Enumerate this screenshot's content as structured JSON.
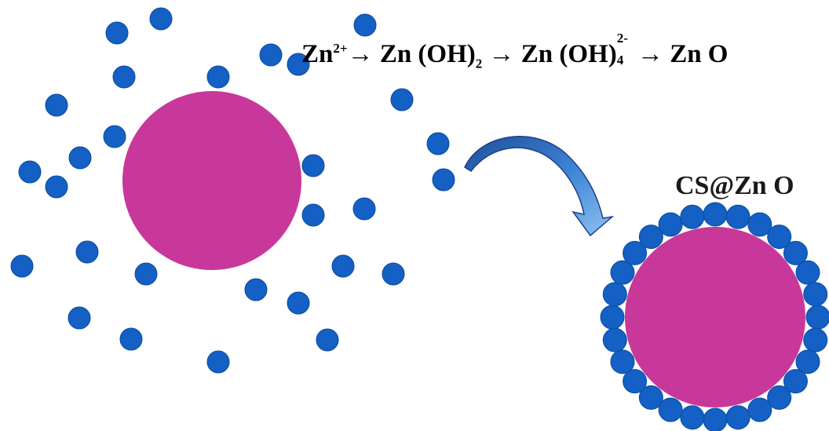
{
  "equation": {
    "zn": "Zn",
    "charge": "2+",
    "arrow": "→",
    "hydroxide": "Zn (OH)",
    "sub2": "2",
    "complex": "Zn (OH)",
    "complex_charge": "2-",
    "complex_sub": "4",
    "oxide": "Zn O"
  },
  "product_label": "CS@Zn O",
  "colors": {
    "core": "#c8389a",
    "zno_particle": "#1460c4",
    "particle_outline": "#0a4aa0",
    "arrow_blue": "#3f86d6",
    "arrow_dark": "#1f3f8a"
  }
}
